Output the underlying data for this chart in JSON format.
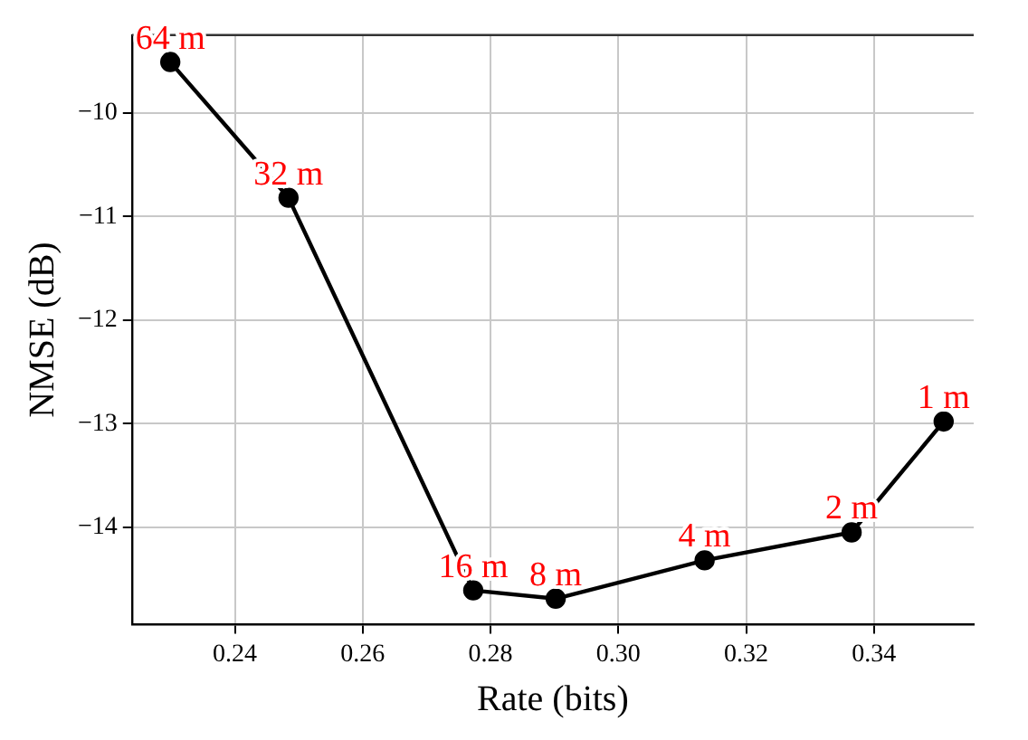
{
  "chart_data": {
    "type": "line",
    "xlabel": "Rate (bits)",
    "ylabel": "NMSE (dB)",
    "x": [
      0.2299,
      0.2484,
      0.2773,
      0.2902,
      0.3135,
      0.3365,
      0.3509
    ],
    "series": [
      {
        "color": "#000000",
        "values": [
          -9.51,
          -10.82,
          -14.61,
          -14.69,
          -14.32,
          -14.05,
          -12.98
        ]
      }
    ],
    "xlim": [
      0.2239,
      0.3556
    ],
    "xticks": [
      {
        "value": 0.24,
        "label": "0.24"
      },
      {
        "value": 0.26,
        "label": "0.26"
      },
      {
        "value": 0.28,
        "label": "0.28"
      },
      {
        "value": 0.3,
        "label": "0.30"
      },
      {
        "value": 0.32,
        "label": "0.32"
      },
      {
        "value": 0.34,
        "label": "0.34"
      }
    ],
    "ylim": [
      -14.94,
      -9.25
    ],
    "yticks": [
      -14,
      -13,
      -12,
      -11,
      -10
    ],
    "grid": true,
    "marker": "circle",
    "line_style": "solid",
    "annotations": [
      {
        "text": "64 m",
        "x": 0.2299,
        "y": -9.51
      },
      {
        "text": "32 m",
        "x": 0.2484,
        "y": -10.82
      },
      {
        "text": "16 m",
        "x": 0.2773,
        "y": -14.61
      },
      {
        "text": "8 m",
        "x": 0.2902,
        "y": -14.69
      },
      {
        "text": "4 m",
        "x": 0.3135,
        "y": -14.32
      },
      {
        "text": "2 m",
        "x": 0.3365,
        "y": -14.05
      },
      {
        "text": "1 m",
        "x": 0.3509,
        "y": -12.98
      }
    ]
  }
}
